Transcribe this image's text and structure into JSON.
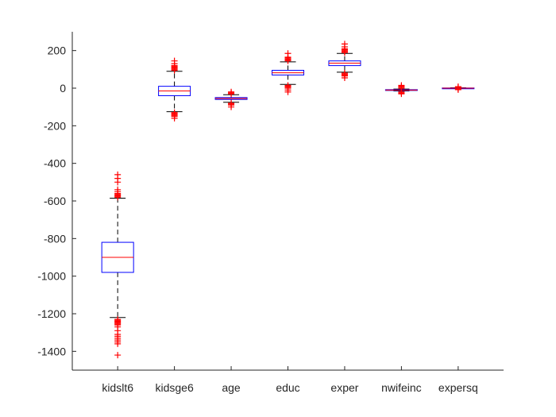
{
  "chart_data": {
    "type": "box",
    "title": "",
    "xlabel": "",
    "ylabel": "",
    "categories": [
      "kidslt6",
      "kidsge6",
      "age",
      "educ",
      "exper",
      "nwifeinc",
      "expersq"
    ],
    "ylim": [
      -1500,
      300
    ],
    "yticks": [
      200,
      0,
      -200,
      -400,
      -600,
      -800,
      -1000,
      -1200,
      -1400
    ],
    "grid": false,
    "colors": {
      "box": "#0000ff",
      "median": "#ff0000",
      "outlier": "#ff0000",
      "whisker": "#000000"
    },
    "boxes": [
      {
        "name": "kidslt6",
        "whisker_low": -1220,
        "q1": -980,
        "median": -900,
        "q3": -820,
        "whisker_high": -585,
        "outliers": [
          -460,
          -480,
          -500,
          -540,
          -550,
          -560,
          -565,
          -570,
          -575,
          -580,
          -1230,
          -1235,
          -1240,
          -1245,
          -1250,
          -1255,
          -1260,
          -1270,
          -1290,
          -1310,
          -1320,
          -1330,
          -1340,
          -1350,
          -1360,
          -1420
        ]
      },
      {
        "name": "kidsge6",
        "whisker_low": -125,
        "q1": -40,
        "median": -15,
        "q3": 10,
        "whisker_high": 90,
        "outliers": [
          95,
          100,
          105,
          110,
          115,
          120,
          130,
          145,
          -130,
          -135,
          -140,
          -145,
          -150,
          -160
        ]
      },
      {
        "name": "age",
        "whisker_low": -75,
        "q1": -60,
        "median": -55,
        "q3": -50,
        "whisker_high": -35,
        "outliers": [
          -20,
          -25,
          -30,
          -80,
          -85,
          -90,
          -100
        ]
      },
      {
        "name": "educ",
        "whisker_low": 20,
        "q1": 70,
        "median": 82,
        "q3": 95,
        "whisker_high": 140,
        "outliers": [
          145,
          150,
          155,
          160,
          165,
          185,
          15,
          10,
          5,
          0,
          -10,
          -20
        ]
      },
      {
        "name": "exper",
        "whisker_low": 85,
        "q1": 120,
        "median": 133,
        "q3": 145,
        "whisker_high": 185,
        "outliers": [
          190,
          195,
          200,
          205,
          210,
          220,
          235,
          80,
          75,
          70,
          65,
          55
        ]
      },
      {
        "name": "nwifeinc",
        "whisker_low": -15,
        "q1": -12,
        "median": -10,
        "q3": -8,
        "whisker_high": -5,
        "outliers": [
          0,
          5,
          10,
          15,
          -20,
          -25,
          -30
        ]
      },
      {
        "name": "expersq",
        "whisker_low": -2,
        "q1": -1,
        "median": 0,
        "q3": 1,
        "whisker_high": 2,
        "outliers": [
          5,
          8,
          -5,
          -8
        ]
      }
    ]
  }
}
